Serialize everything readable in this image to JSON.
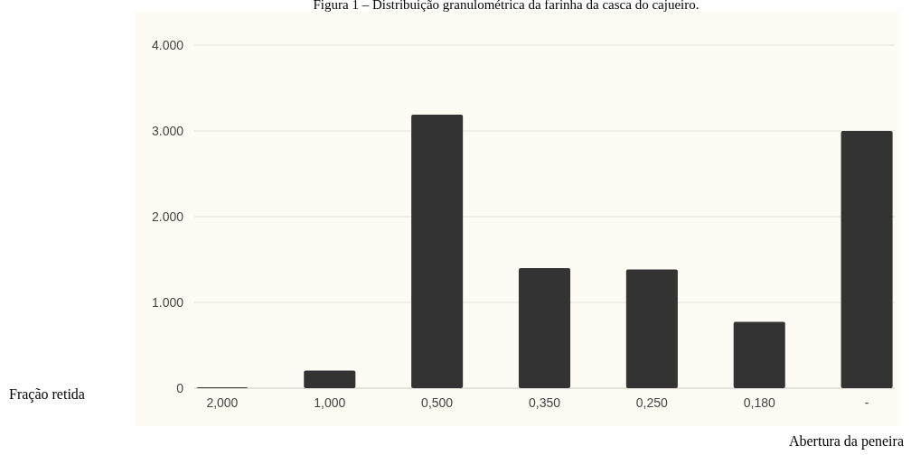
{
  "chart_data": {
    "type": "bar",
    "title": "Figura 1 – Distribuição granulométrica da farinha da casca do cajueiro.",
    "xlabel": "Abertura da peneira",
    "ylabel": "Fração retida",
    "categories": [
      "2,000",
      "1,000",
      "0,500",
      "0,350",
      "0,250",
      "0,180",
      "-"
    ],
    "values": [
      10,
      205,
      3190,
      1400,
      1385,
      775,
      3000
    ],
    "color": "#333333",
    "ylim": [
      0,
      4000
    ],
    "yticks": [
      {
        "value": 0,
        "label": "0"
      },
      {
        "value": 1000,
        "label": "1.000"
      },
      {
        "value": 2000,
        "label": "2.000"
      },
      {
        "value": 3000,
        "label": "3.000"
      },
      {
        "value": 4000,
        "label": "4.000"
      }
    ],
    "grid": "y"
  }
}
